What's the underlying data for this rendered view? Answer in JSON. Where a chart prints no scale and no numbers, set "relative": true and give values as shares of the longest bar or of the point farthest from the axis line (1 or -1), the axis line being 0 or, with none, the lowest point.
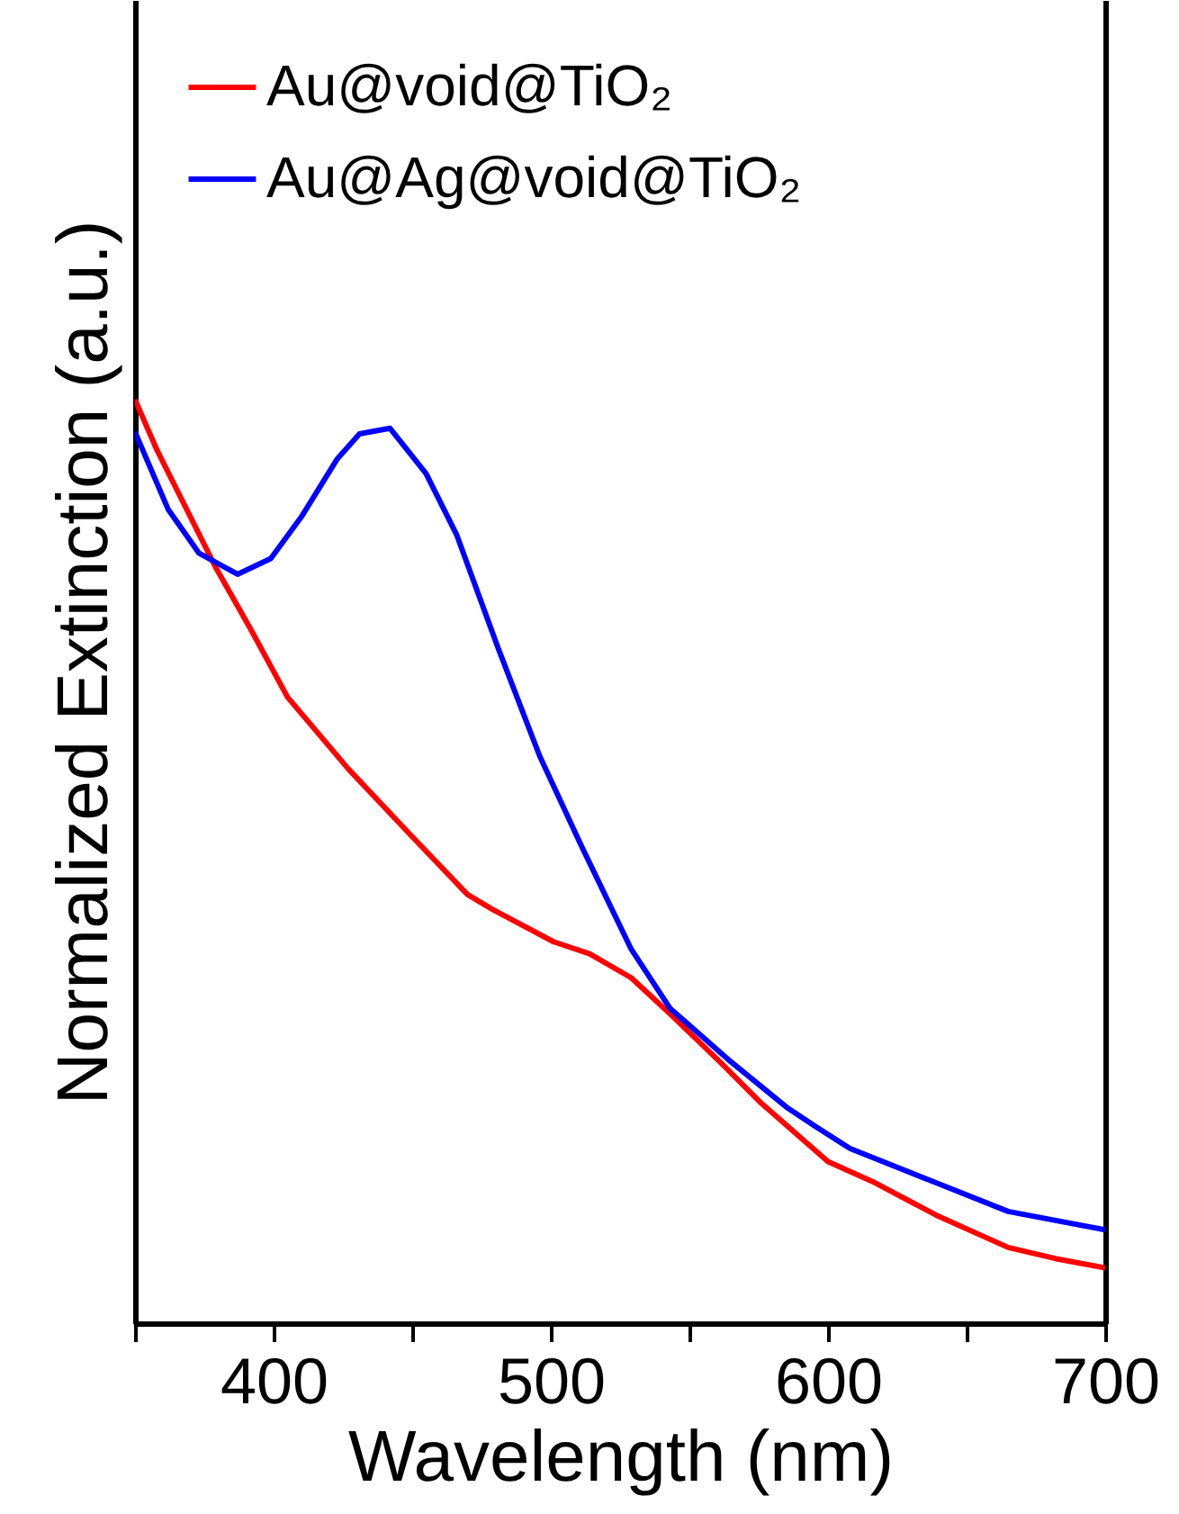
{
  "chart_data": {
    "type": "line",
    "xlabel": "Wavelength (nm)",
    "ylabel": "Normalized Extinction (a.u.)",
    "relative": true,
    "xlim": [
      350,
      700
    ],
    "xticks": [
      {
        "value": 350,
        "label": null
      },
      400,
      {
        "value": 450,
        "label": null
      },
      500,
      {
        "value": 550,
        "label": null
      },
      600,
      {
        "value": 650,
        "label": null
      },
      700
    ],
    "legend": "top left",
    "series": [
      {
        "name": "Au@void@TiO₂",
        "color": "#ff0000",
        "x": [
          350,
          358,
          379,
          392,
          405,
          427,
          449,
          470,
          479,
          501,
          514,
          529,
          543,
          561,
          576,
          600,
          617,
          639,
          665,
          682,
          700
        ],
        "values": [
          1.0,
          0.945,
          0.819,
          0.75,
          0.678,
          0.6,
          0.53,
          0.464,
          0.448,
          0.413,
          0.4,
          0.374,
          0.335,
          0.283,
          0.238,
          0.175,
          0.152,
          0.117,
          0.082,
          0.07,
          0.06
        ]
      },
      {
        "name": "Au@Ag@void@TiO₂",
        "color": "#0000ff",
        "x": [
          350,
          362,
          373,
          387,
          399,
          410,
          423,
          431,
          442,
          455,
          466,
          481,
          496,
          511,
          529,
          543,
          565,
          585,
          595,
          608,
          639,
          665,
          700
        ],
        "values": [
          0.965,
          0.881,
          0.834,
          0.811,
          0.828,
          0.873,
          0.936,
          0.963,
          0.969,
          0.92,
          0.854,
          0.731,
          0.614,
          0.517,
          0.405,
          0.341,
          0.283,
          0.234,
          0.214,
          0.189,
          0.152,
          0.121,
          0.101
        ]
      }
    ]
  }
}
